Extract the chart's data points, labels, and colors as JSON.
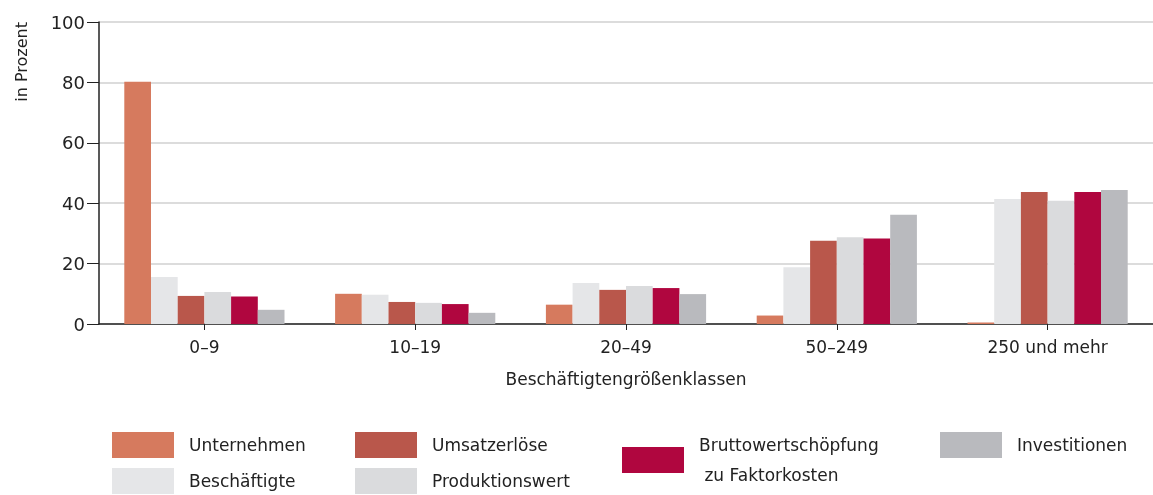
{
  "chart_data": {
    "type": "bar",
    "ylabel": "in Prozent",
    "xlabel": "Beschäftigtengrößenklassen",
    "categories": [
      "0–9",
      "10–19",
      "20–49",
      "50–249",
      "250 und mehr"
    ],
    "series": [
      {
        "name": "Unternehmen",
        "color": "#d67a5e",
        "values": [
          80.2,
          10.0,
          6.4,
          2.8,
          0.5
        ]
      },
      {
        "name": "Beschäftigte",
        "color": "#e5e6e8",
        "values": [
          15.6,
          9.7,
          13.6,
          18.8,
          41.4
        ]
      },
      {
        "name": "Umsatzerlöse",
        "color": "#b9574b",
        "values": [
          9.3,
          7.3,
          11.3,
          27.6,
          43.7
        ]
      },
      {
        "name": "Produktionswert",
        "color": "#dadbdd",
        "values": [
          10.6,
          7.0,
          12.6,
          28.7,
          40.8
        ]
      },
      {
        "name": "Bruttowertschöpfung zu Faktorkosten",
        "color": "#b0063f",
        "values": [
          9.1,
          6.6,
          11.9,
          28.3,
          43.7
        ]
      },
      {
        "name": "Investitionen",
        "color": "#b9babe",
        "values": [
          4.7,
          3.7,
          9.9,
          36.2,
          44.4
        ]
      }
    ],
    "ylim": [
      0,
      100
    ],
    "yticks": [
      0,
      20,
      40,
      60,
      80,
      100
    ],
    "grid": "y",
    "legend": "bottom"
  }
}
